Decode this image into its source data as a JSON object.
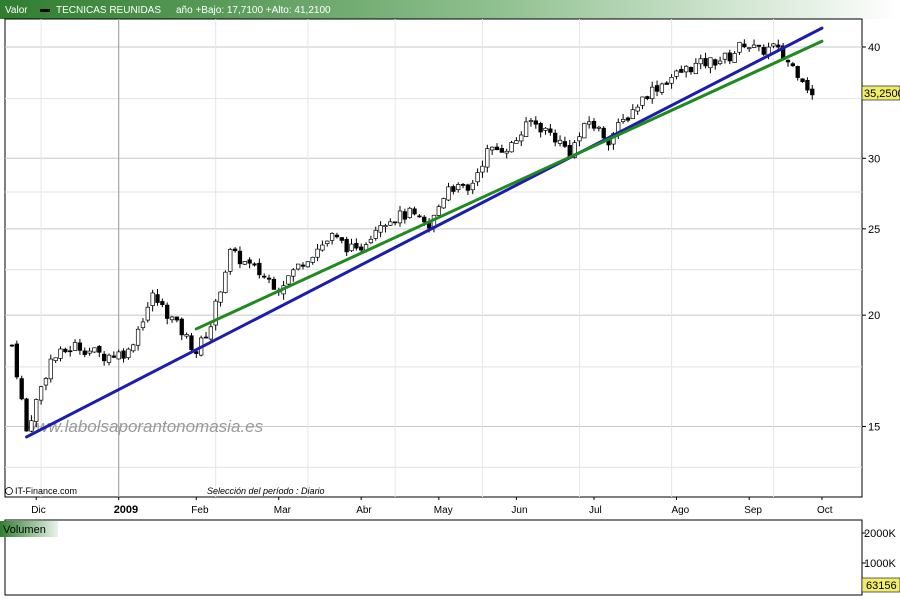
{
  "header": {
    "valor_label": "Valor",
    "ticker": "TECNICAS REUNIDAS",
    "range_text": "año +Bajo: 17,7100 +Alto: 41,2100"
  },
  "footer": {
    "source": "IT-Finance.com",
    "period": "Selección del período : Diario"
  },
  "watermark": "www.labolsaporantonomasia.es",
  "last_value_label": "35,2500",
  "volume": {
    "title": "Volumen",
    "ticks": [
      "2000K",
      "1000K"
    ],
    "last_label": "63156"
  },
  "colors": {
    "header_start": "#2f7d2f",
    "header_end": "#ffffff",
    "up_candle": "#ffffff",
    "down_candle": "#000000",
    "trendline_blue": "#1c1cae",
    "trendline_green": "#1f8a1f",
    "grid": "#c8c8c8",
    "volume_up": "#5fbf5f",
    "volume_down": "#d65a5a"
  },
  "chart_data": {
    "type": "candlestick",
    "scale": "log",
    "ylim": [
      12.5,
      43
    ],
    "yticks": [
      15,
      20,
      25,
      30,
      40
    ],
    "xticks": [
      {
        "label": "Dic",
        "bold": false
      },
      {
        "label": "2009",
        "bold": true
      },
      {
        "label": "Feb",
        "bold": false
      },
      {
        "label": "Mar",
        "bold": false
      },
      {
        "label": "Abr",
        "bold": false
      },
      {
        "label": "May",
        "bold": false
      },
      {
        "label": "Jun",
        "bold": false
      },
      {
        "label": "Jul",
        "bold": false
      },
      {
        "label": "Ago",
        "bold": false
      },
      {
        "label": "Sep",
        "bold": false
      },
      {
        "label": "Oct",
        "bold": false
      }
    ],
    "close_path": [
      [
        0,
        18.5
      ],
      [
        3,
        14.8
      ],
      [
        8,
        17.8
      ],
      [
        13,
        18.5
      ],
      [
        19,
        18.0
      ],
      [
        24,
        18.2
      ],
      [
        29,
        21.0
      ],
      [
        33,
        19.8
      ],
      [
        38,
        18.2
      ],
      [
        41,
        19.5
      ],
      [
        45,
        23.5
      ],
      [
        50,
        22.5
      ],
      [
        55,
        21.5
      ],
      [
        60,
        23.0
      ],
      [
        66,
        24.5
      ],
      [
        71,
        23.5
      ],
      [
        76,
        25.5
      ],
      [
        82,
        26.0
      ],
      [
        86,
        25.0
      ],
      [
        90,
        28.0
      ],
      [
        94,
        27.5
      ],
      [
        98,
        30.5
      ],
      [
        103,
        31.0
      ],
      [
        107,
        33.0
      ],
      [
        111,
        32.0
      ],
      [
        115,
        30.5
      ],
      [
        119,
        33.0
      ],
      [
        123,
        31.5
      ],
      [
        127,
        33.5
      ],
      [
        131,
        35.5
      ],
      [
        136,
        37.0
      ],
      [
        140,
        38.0
      ],
      [
        144,
        38.5
      ],
      [
        148,
        39.0
      ],
      [
        151,
        40.5
      ],
      [
        154,
        39.5
      ],
      [
        157,
        40.0
      ],
      [
        160,
        38.5
      ],
      [
        163,
        37.0
      ],
      [
        165,
        35.25
      ]
    ],
    "trendlines": [
      {
        "name": "",
        "color": "blue",
        "points": [
          [
            3,
            14.6
          ],
          [
            167,
            42.0
          ]
        ]
      },
      {
        "name": "",
        "color": "green",
        "points": [
          [
            38,
            19.3
          ],
          [
            167,
            40.6
          ]
        ]
      }
    ],
    "last_close": 35.25,
    "volume_scale_max": 2000
  }
}
